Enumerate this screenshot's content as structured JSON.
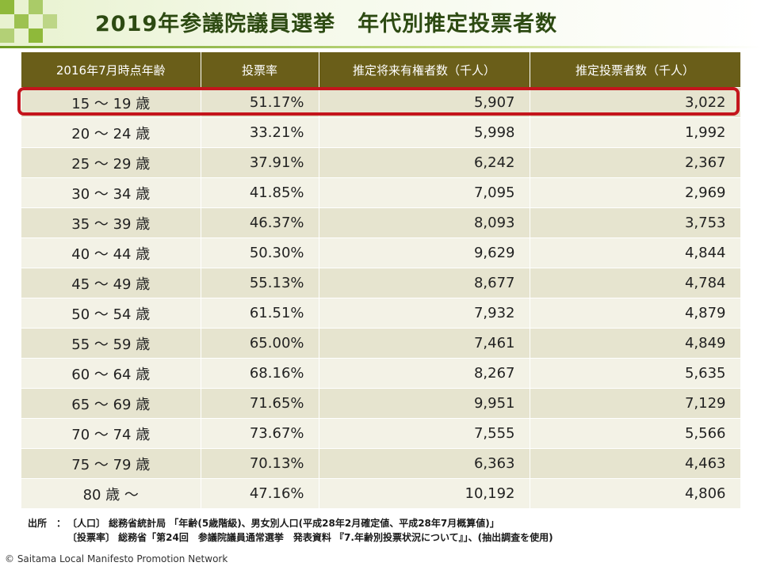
{
  "title": "2019年参議院議員選挙　年代別推定投票者数",
  "colors": {
    "header_bg": "#6a5e19",
    "highlight": "#c4151c",
    "accent": "#8fb93a"
  },
  "table": {
    "headers": [
      "2016年7月時点年齢",
      "投票率",
      "推定将来有権者数（千人）",
      "推定投票者数（千人）"
    ],
    "rows": [
      {
        "age": "15 ～ 19 歳",
        "rate": "51.17%",
        "voters": "5,907",
        "votes": "3,022"
      },
      {
        "age": "20 ～ 24 歳",
        "rate": "33.21%",
        "voters": "5,998",
        "votes": "1,992"
      },
      {
        "age": "25 ～ 29 歳",
        "rate": "37.91%",
        "voters": "6,242",
        "votes": "2,367"
      },
      {
        "age": "30 ～ 34 歳",
        "rate": "41.85%",
        "voters": "7,095",
        "votes": "2,969"
      },
      {
        "age": "35 ～ 39 歳",
        "rate": "46.37%",
        "voters": "8,093",
        "votes": "3,753"
      },
      {
        "age": "40 ～ 44 歳",
        "rate": "50.30%",
        "voters": "9,629",
        "votes": "4,844"
      },
      {
        "age": "45 ～ 49 歳",
        "rate": "55.13%",
        "voters": "8,677",
        "votes": "4,784"
      },
      {
        "age": "50 ～ 54 歳",
        "rate": "61.51%",
        "voters": "7,932",
        "votes": "4,879"
      },
      {
        "age": "55 ～ 59 歳",
        "rate": "65.00%",
        "voters": "7,461",
        "votes": "4,849"
      },
      {
        "age": "60 ～ 64 歳",
        "rate": "68.16%",
        "voters": "8,267",
        "votes": "5,635"
      },
      {
        "age": "65 ～ 69 歳",
        "rate": "71.65%",
        "voters": "9,951",
        "votes": "7,129"
      },
      {
        "age": "70 ～ 74 歳",
        "rate": "73.67%",
        "voters": "7,555",
        "votes": "5,566"
      },
      {
        "age": "75 ～ 79 歳",
        "rate": "70.13%",
        "voters": "6,363",
        "votes": "4,463"
      },
      {
        "age": "80 歳 ～",
        "rate": "47.16%",
        "voters": "10,192",
        "votes": "4,806"
      }
    ]
  },
  "source": {
    "label": "出所　：",
    "line1": "〔人口〕 総務省統計局 「年齢(5歳階級)、男女別人口(平成28年2月確定値、平成28年7月概算値)」",
    "line2": "〔投票率〕 総務省「第24回　参議院議員通常選挙　発表資料 『7.年齢別投票状況について』」、(抽出調査を使用)"
  },
  "copyright": "© Saitama Local Manifesto Promotion Network"
}
